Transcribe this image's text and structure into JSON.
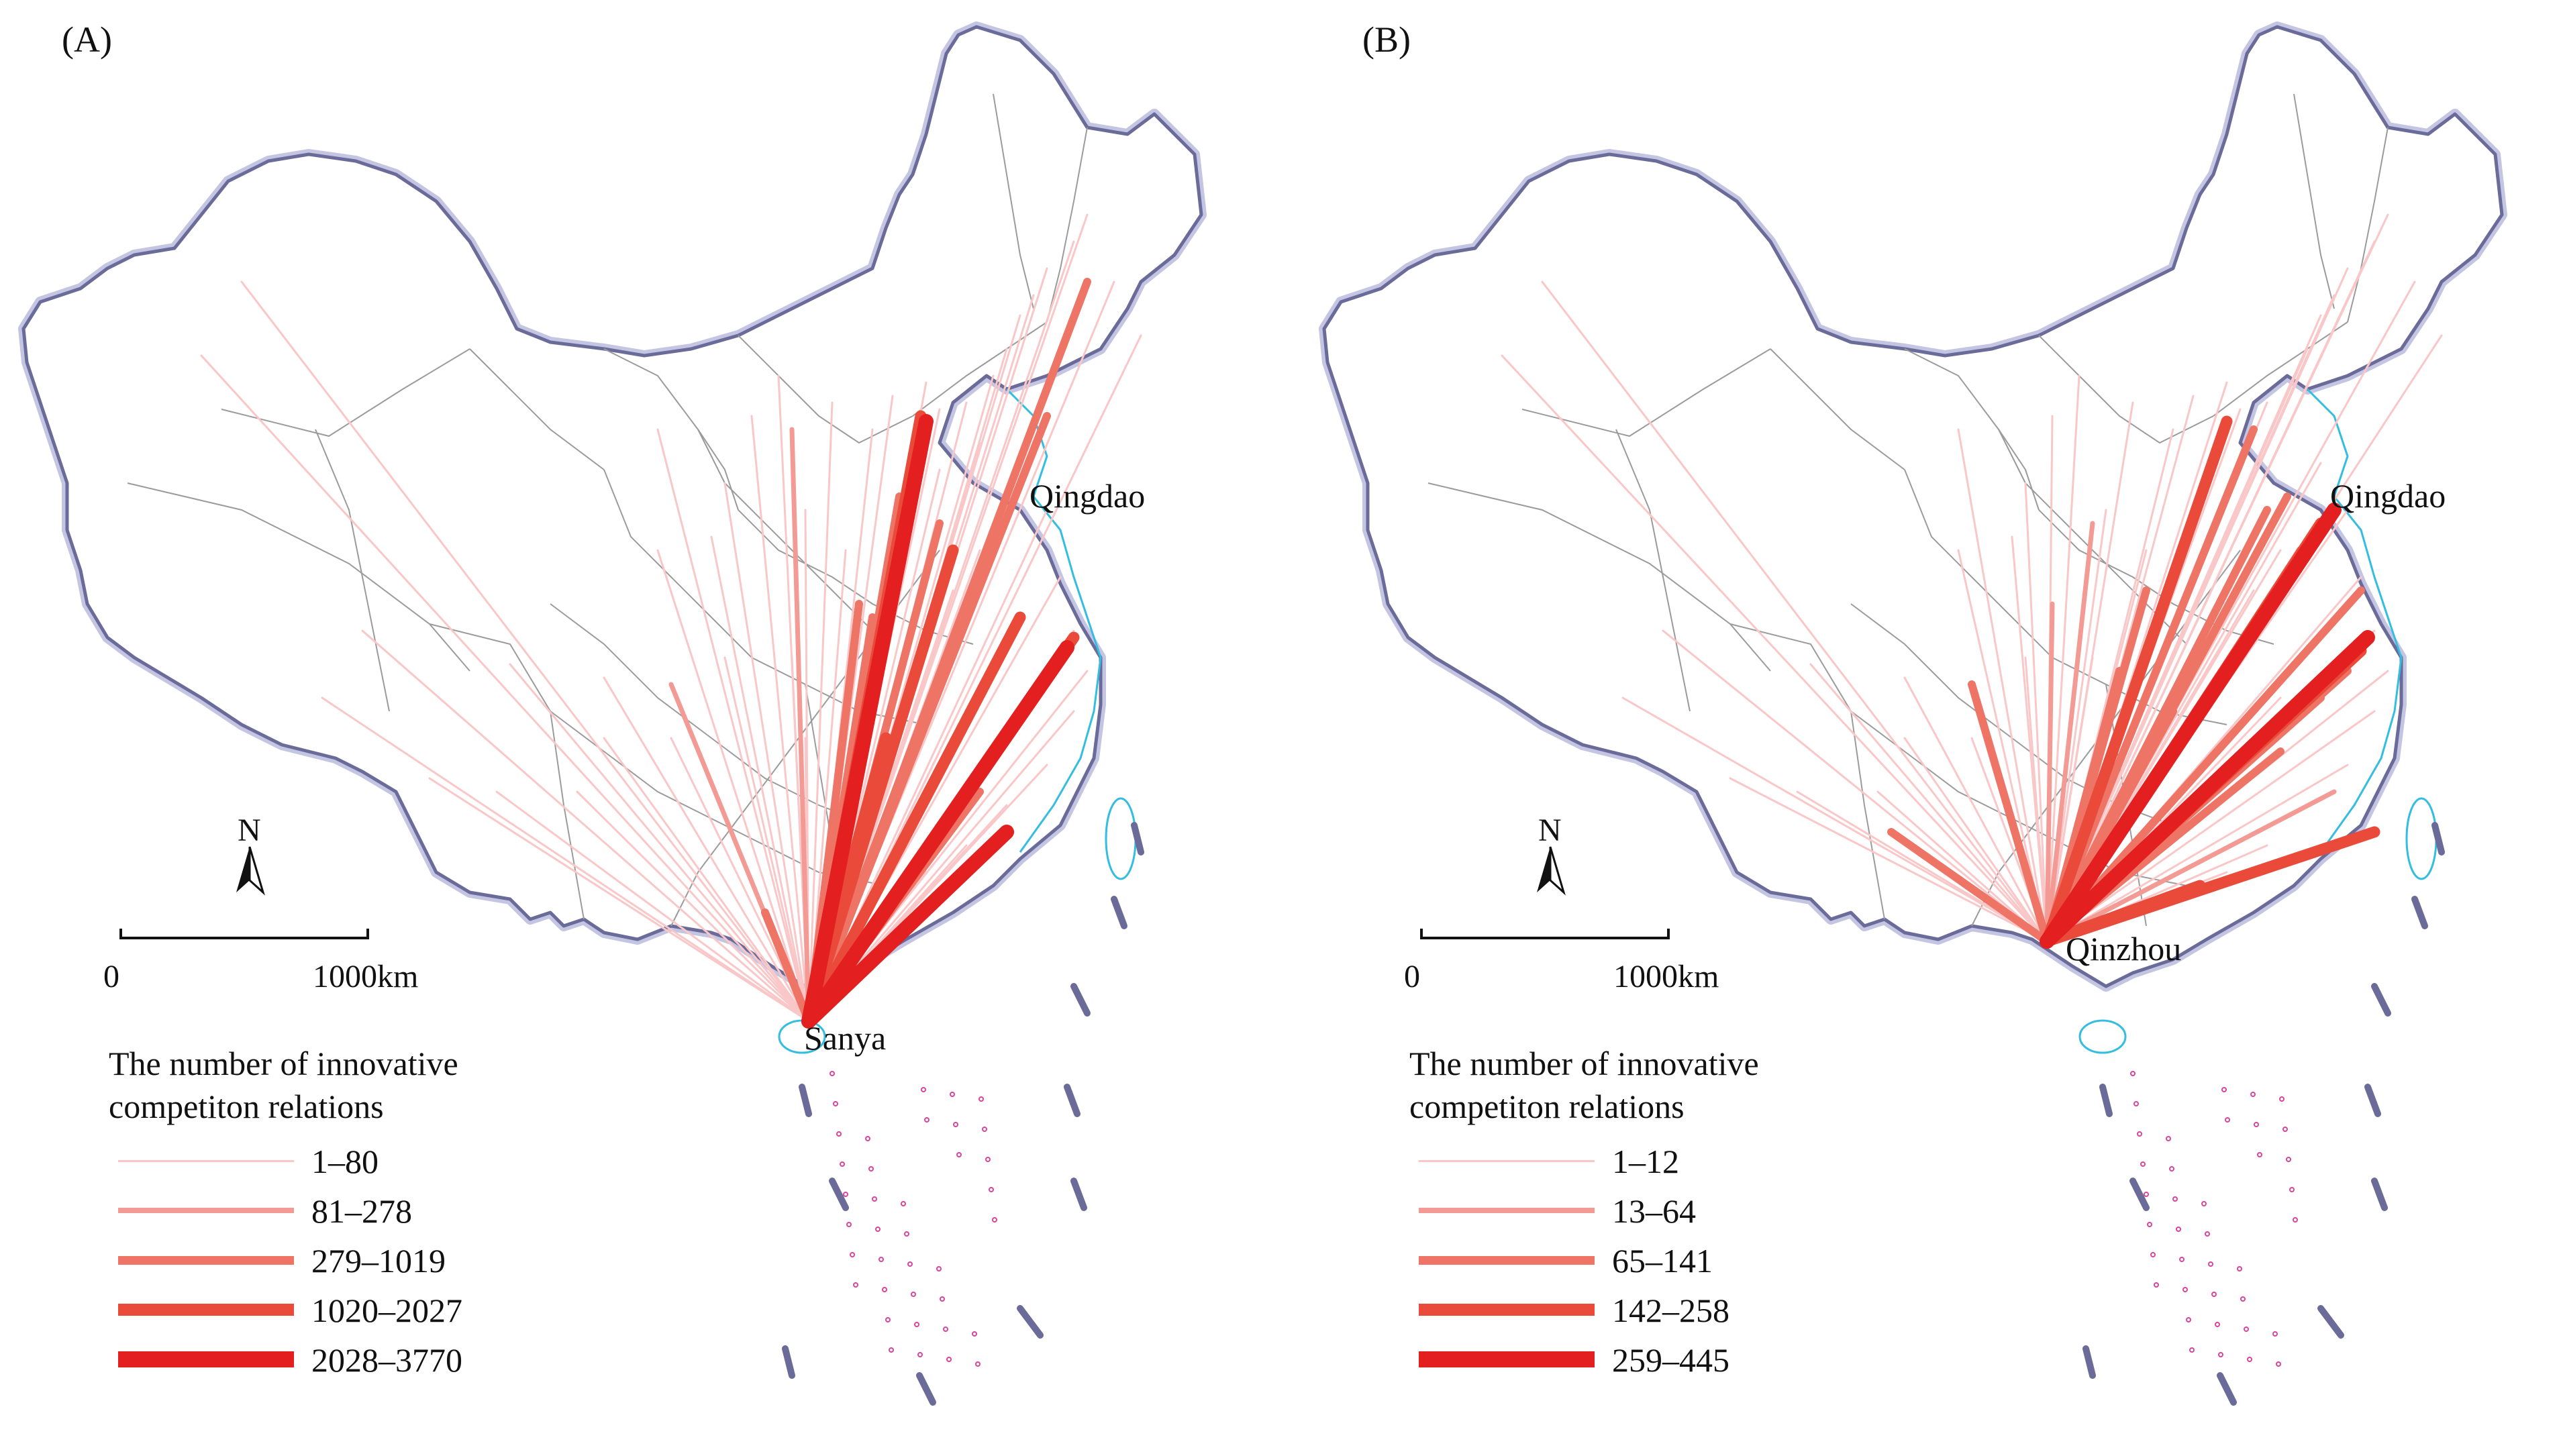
{
  "panels": [
    {
      "label": "(A)",
      "hub": {
        "name": "Sanya"
      },
      "labeled_city": "Qingdao",
      "legend_title": "The number of innovative competiton relations",
      "legend_classes": [
        "1–80",
        "81–278",
        "279–1019",
        "1020–2027",
        "2028–3770"
      ],
      "scale_zero": "0",
      "scale_max": "1000km",
      "north": "N"
    },
    {
      "label": "(B)",
      "hub": {
        "name": "Qinzhou"
      },
      "labeled_city": "Qingdao",
      "legend_title": "The number of innovative competiton relations",
      "legend_classes": [
        "1–12",
        "13–64",
        "65–141",
        "142–258",
        "259–445"
      ],
      "scale_zero": "0",
      "scale_max": "1000km",
      "north": "N"
    }
  ],
  "colors": {
    "class_colors": [
      "#f9c7c7",
      "#f39a94",
      "#ee7466",
      "#ea4a39",
      "#e41f1f"
    ],
    "border": "#6b6b9a",
    "border_glow": "#c4c4e3",
    "province": "#9b9b9b",
    "coast": "#33bde0",
    "islands": "#d8459a"
  }
}
